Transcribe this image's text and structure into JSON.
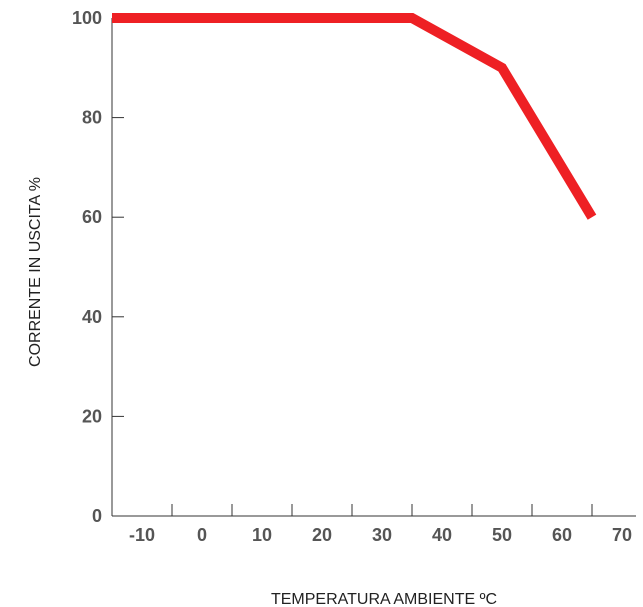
{
  "chart_data": {
    "type": "line",
    "title": "",
    "xlabel": "TEMPERATURA AMBIENTE ºC",
    "ylabel": "CORRENTE IN USCITA %",
    "x_ticks": [
      "-10",
      "0",
      "10",
      "20",
      "30",
      "40",
      "50",
      "60",
      "70"
    ],
    "y_ticks": [
      "0",
      "20",
      "40",
      "60",
      "80",
      "100"
    ],
    "xlim": [
      -15,
      70
    ],
    "ylim": [
      0,
      100
    ],
    "grid": false,
    "series": [
      {
        "color": "#ee2024",
        "points": [
          {
            "x": -15,
            "y": 100
          },
          {
            "x": 35,
            "y": 100
          },
          {
            "x": 50,
            "y": 90
          },
          {
            "x": 65,
            "y": 60
          }
        ]
      }
    ]
  }
}
